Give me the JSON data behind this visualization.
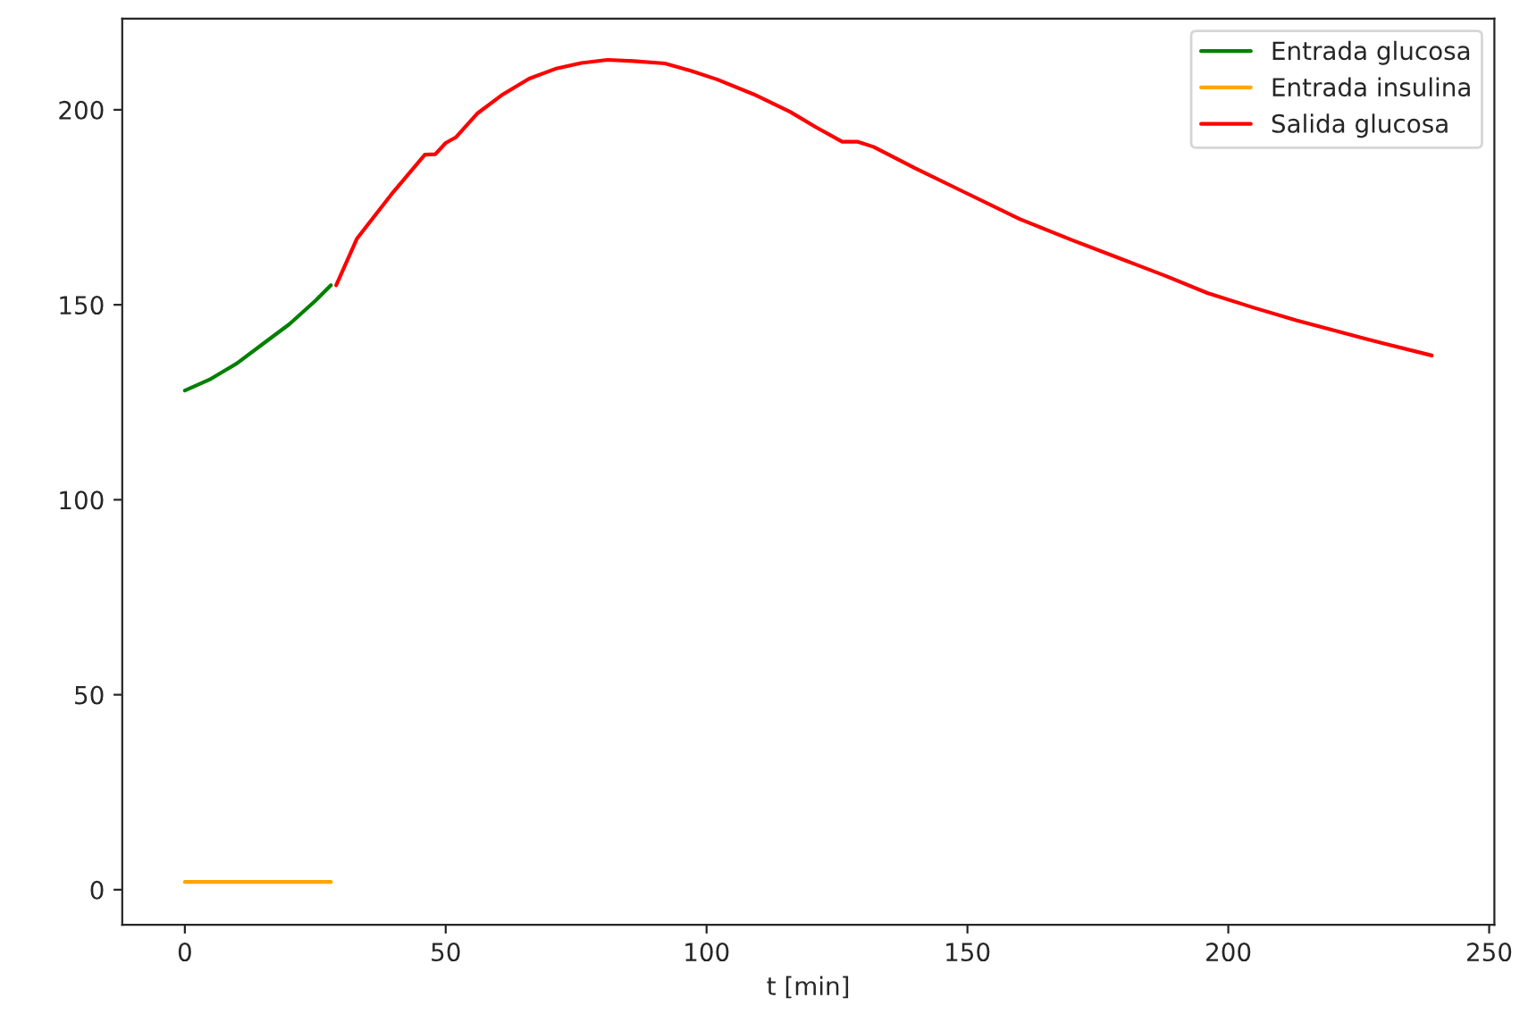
{
  "chart_data": {
    "type": "line",
    "xlabel": "t [min]",
    "xlim": [
      -12,
      251
    ],
    "ylim": [
      -9,
      223.4
    ],
    "xticks": [
      0,
      50,
      100,
      150,
      200,
      250
    ],
    "yticks": [
      0,
      50,
      100,
      150,
      200
    ],
    "grid": false,
    "legend": "top right",
    "marker": "none",
    "line_style": "solid",
    "series": [
      {
        "name": "Entrada glucosa",
        "color": "#008000",
        "x": [
          0,
          5,
          10,
          15,
          20,
          25,
          28
        ],
        "values": [
          128,
          131,
          135,
          140,
          145,
          151,
          155
        ]
      },
      {
        "name": "Entrada insulina",
        "color": "#ffa500",
        "x": [
          0,
          28
        ],
        "values": [
          2,
          2
        ]
      },
      {
        "name": "Salida glucosa",
        "color": "#ff0000",
        "x": [
          29,
          33,
          40,
          46,
          48,
          50,
          52,
          56,
          61,
          66,
          71,
          76,
          81,
          86,
          92,
          97,
          102,
          109,
          116,
          121,
          126,
          129,
          132,
          140,
          150,
          160,
          170,
          180,
          188,
          196,
          205,
          213,
          222,
          230,
          239
        ],
        "values": [
          155,
          167,
          179,
          188.5,
          188.6,
          191.5,
          193,
          199,
          204,
          208,
          210.5,
          212,
          212.8,
          212.5,
          211.9,
          210,
          207.8,
          204,
          199.5,
          195.5,
          191.8,
          191.8,
          190.5,
          185,
          178.5,
          172,
          166.6,
          161.5,
          157.4,
          153,
          149.2,
          146,
          142.8,
          140,
          137
        ]
      }
    ]
  }
}
